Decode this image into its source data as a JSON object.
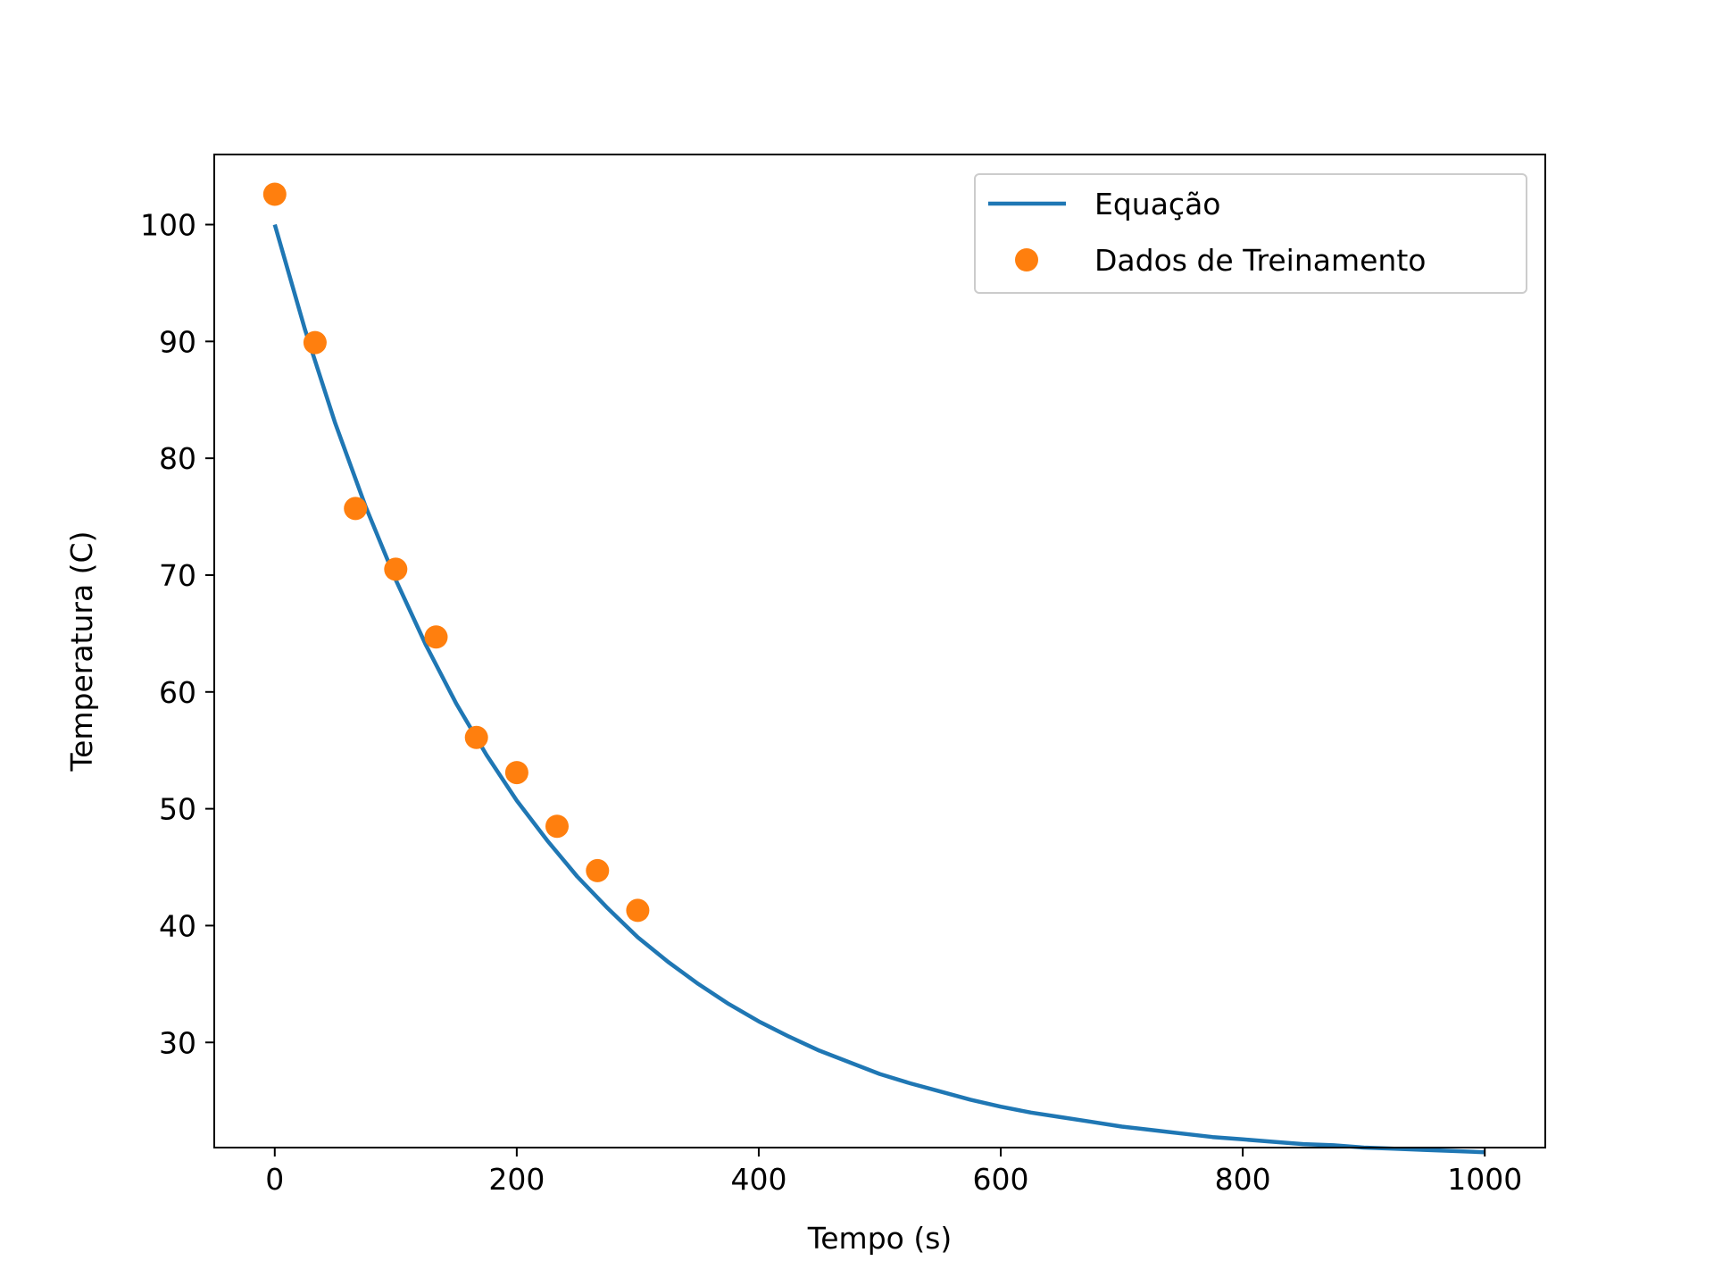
{
  "chart_data": {
    "type": "line",
    "title": "",
    "xlabel": "Tempo (s)",
    "ylabel": "Temperatura (C)",
    "xlim": [
      -50,
      1050
    ],
    "ylim": [
      21,
      106
    ],
    "xticks": [
      0,
      200,
      400,
      600,
      800,
      1000
    ],
    "yticks": [
      30,
      40,
      50,
      60,
      70,
      80,
      90,
      100
    ],
    "grid": false,
    "legend": "top-right",
    "series": [
      {
        "name": "Equação",
        "kind": "line",
        "color": "#1f77b4",
        "x": [
          0,
          25,
          50,
          75,
          100,
          125,
          150,
          175,
          200,
          225,
          250,
          275,
          300,
          325,
          350,
          375,
          400,
          425,
          450,
          475,
          500,
          525,
          550,
          575,
          600,
          625,
          650,
          675,
          700,
          725,
          750,
          775,
          800,
          825,
          850,
          875,
          900,
          925,
          950,
          975,
          1000
        ],
        "y": [
          100.0,
          91.0,
          83.0,
          75.9,
          69.6,
          64.0,
          59.0,
          54.6,
          50.7,
          47.3,
          44.2,
          41.5,
          39.0,
          36.9,
          35.0,
          33.3,
          31.8,
          30.5,
          29.3,
          28.3,
          27.3,
          26.5,
          25.8,
          25.1,
          24.5,
          24.0,
          23.6,
          23.2,
          22.8,
          22.5,
          22.2,
          21.9,
          21.7,
          21.5,
          21.3,
          21.2,
          21.0,
          20.9,
          20.8,
          20.7,
          20.6
        ]
      },
      {
        "name": "Dados de Treinamento",
        "kind": "scatter",
        "color": "#ff7f0e",
        "x": [
          0,
          33.3,
          66.7,
          100,
          133.3,
          166.7,
          200,
          233.3,
          266.7,
          300
        ],
        "y": [
          102.6,
          89.9,
          75.7,
          70.5,
          64.7,
          56.1,
          53.1,
          48.5,
          44.7,
          41.3
        ]
      }
    ]
  }
}
